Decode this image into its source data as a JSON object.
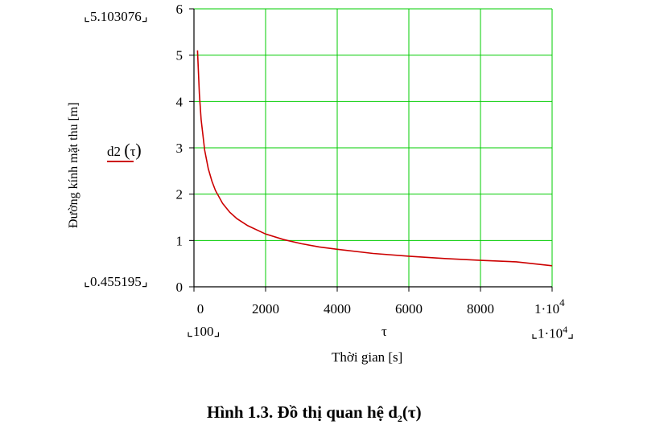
{
  "chart_data": {
    "type": "line",
    "xlim": [
      0,
      10000
    ],
    "ylim": [
      0,
      6
    ],
    "x_ticks": [
      "0",
      "2000",
      "4000",
      "6000",
      "8000"
    ],
    "x_tick_last": {
      "base": "1·10",
      "exp": "4"
    },
    "y_ticks": [
      "0",
      "1",
      "2",
      "3",
      "4",
      "5",
      "6"
    ],
    "x_axis_symbol": "τ",
    "xlabel": "Thời gian [s]",
    "ylabel": "Đường kính mặt thu [m]",
    "x_range_min": "100",
    "x_range_max": {
      "base": "1·10",
      "exp": "4"
    },
    "y_range_max": "5.103076",
    "y_range_min": "0.455195",
    "grid": true,
    "grid_color": "#00cc00",
    "series": [
      {
        "name": "d2(τ)",
        "color": "#cc0000",
        "x": [
          100,
          150,
          200,
          300,
          400,
          500,
          600,
          800,
          1000,
          1200,
          1500,
          2000,
          2500,
          3000,
          3500,
          4000,
          5000,
          6000,
          7000,
          8000,
          9000,
          10000
        ],
        "y": [
          5.103,
          4.17,
          3.61,
          2.95,
          2.55,
          2.28,
          2.08,
          1.8,
          1.61,
          1.47,
          1.32,
          1.14,
          1.02,
          0.93,
          0.86,
          0.81,
          0.72,
          0.66,
          0.61,
          0.57,
          0.54,
          0.455
        ]
      }
    ]
  },
  "caption": {
    "prefix": "Hình 1.3. Đồ thị quan hệ d",
    "sub": "2",
    "suffix": "(τ)"
  },
  "legend": {
    "text": "d2",
    "arg": "τ"
  }
}
